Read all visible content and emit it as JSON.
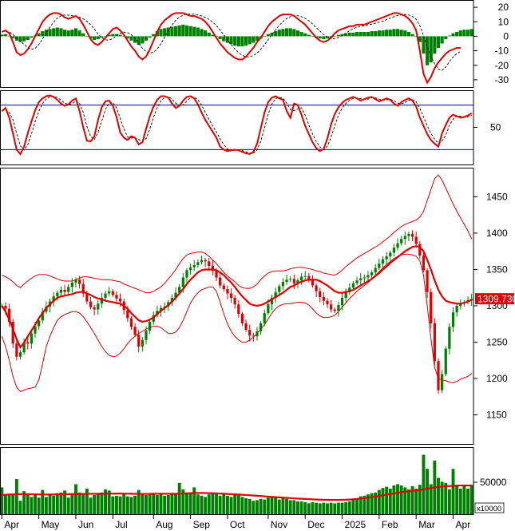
{
  "chart_data": {
    "type": "line",
    "x_labels": [
      "Apr",
      "May",
      "Jun",
      "Jul",
      "Aug",
      "Sep",
      "Oct",
      "Nov",
      "Dec",
      "2025",
      "Feb",
      "Mar",
      "Apr"
    ],
    "price_panel": {
      "ylim": [
        1110,
        1490
      ],
      "yticks": [
        1150,
        1200,
        1250,
        1300,
        1350,
        1400,
        1450
      ],
      "last_value_label": "1309.730",
      "last_value": 1309.73,
      "series": [
        {
          "role": "close",
          "color": "#008000",
          "values": [
            1300,
            1296,
            1278,
            1248,
            1230,
            1236,
            1250,
            1248,
            1262,
            1272,
            1280,
            1292,
            1299,
            1306,
            1313,
            1318,
            1322,
            1319,
            1326,
            1332,
            1336,
            1330,
            1317,
            1306,
            1298,
            1295,
            1303,
            1311,
            1317,
            1320,
            1315,
            1310,
            1306,
            1294,
            1283,
            1271,
            1260,
            1244,
            1253,
            1266,
            1278,
            1287,
            1293,
            1297,
            1299,
            1305,
            1311,
            1318,
            1326,
            1339,
            1349,
            1353,
            1356,
            1360,
            1363,
            1361,
            1355,
            1348,
            1339,
            1328,
            1323,
            1317,
            1311,
            1302,
            1289,
            1276,
            1267,
            1259,
            1258,
            1265,
            1276,
            1290,
            1302,
            1311,
            1319,
            1327,
            1333,
            1336,
            1337,
            1331,
            1335,
            1340,
            1341,
            1336,
            1328,
            1320,
            1312,
            1307,
            1302,
            1295,
            1293,
            1301,
            1311,
            1320,
            1325,
            1331,
            1335,
            1338,
            1339,
            1342,
            1346,
            1352,
            1358,
            1364,
            1368,
            1373,
            1380,
            1386,
            1392,
            1396,
            1399,
            1395,
            1385,
            1369,
            1349,
            1319,
            1276,
            1224,
            1184,
            1206,
            1241,
            1271,
            1291,
            1300,
            1303,
            1305,
            1308,
            1309.73
          ]
        },
        {
          "role": "ma",
          "color": "#e00000",
          "values": [
            1300,
            1292,
            1281,
            1268,
            1254,
            1243,
            1249,
            1258,
            1266,
            1274,
            1283,
            1290,
            1297,
            1302,
            1307,
            1311,
            1313,
            1314,
            1315,
            1316,
            1318,
            1319,
            1319,
            1317,
            1315,
            1312,
            1310,
            1309,
            1307,
            1306,
            1305,
            1304,
            1303,
            1300,
            1296,
            1290,
            1285,
            1280,
            1278,
            1279,
            1281,
            1284,
            1289,
            1293,
            1297,
            1301,
            1306,
            1311,
            1317,
            1323,
            1330,
            1336,
            1341,
            1346,
            1349,
            1350,
            1350,
            1350,
            1349,
            1346,
            1342,
            1337,
            1332,
            1326,
            1319,
            1313,
            1308,
            1303,
            1301,
            1300,
            1301,
            1303,
            1306,
            1309,
            1312,
            1315,
            1318,
            1322,
            1326,
            1328,
            1331,
            1333,
            1335,
            1336,
            1336,
            1336,
            1334,
            1331,
            1328,
            1324,
            1320,
            1318,
            1318,
            1319,
            1320,
            1322,
            1325,
            1328,
            1331,
            1334,
            1337,
            1341,
            1345,
            1350,
            1354,
            1359,
            1363,
            1367,
            1371,
            1375,
            1378,
            1381,
            1382,
            1381,
            1375,
            1363,
            1350,
            1335,
            1322,
            1313,
            1307,
            1305,
            1304,
            1303,
            1303,
            1304,
            1306,
            1308
          ]
        },
        {
          "role": "bollinger_upper",
          "color": "#e00000",
          "values": [
            1342,
            1340,
            1337,
            1333,
            1328,
            1325,
            1330,
            1334,
            1338,
            1341,
            1343,
            1343,
            1343,
            1341,
            1339,
            1337,
            1335,
            1334,
            1334,
            1334,
            1336,
            1338,
            1340,
            1340,
            1339,
            1338,
            1337,
            1336,
            1336,
            1336,
            1335,
            1334,
            1333,
            1330,
            1328,
            1326,
            1324,
            1322,
            1320,
            1318,
            1318,
            1320,
            1323,
            1326,
            1331,
            1337,
            1343,
            1350,
            1358,
            1365,
            1370,
            1372,
            1373,
            1374,
            1374,
            1372,
            1368,
            1363,
            1358,
            1352,
            1346,
            1341,
            1337,
            1333,
            1328,
            1325,
            1324,
            1324,
            1326,
            1330,
            1336,
            1341,
            1345,
            1347,
            1348,
            1348,
            1348,
            1349,
            1351,
            1352,
            1353,
            1353,
            1352,
            1351,
            1350,
            1348,
            1347,
            1345,
            1344,
            1343,
            1342,
            1345,
            1349,
            1354,
            1358,
            1362,
            1366,
            1369,
            1372,
            1375,
            1378,
            1381,
            1384,
            1388,
            1392,
            1396,
            1401,
            1405,
            1409,
            1412,
            1414,
            1416,
            1418,
            1422,
            1430,
            1445,
            1460,
            1475,
            1480,
            1473,
            1462,
            1451,
            1440,
            1430,
            1421,
            1412,
            1403,
            1392
          ]
        },
        {
          "role": "bollinger_lower",
          "color": "#e00000",
          "values": [
            1258,
            1244,
            1225,
            1203,
            1188,
            1182,
            1184,
            1186,
            1187,
            1188,
            1198,
            1220,
            1244,
            1258,
            1270,
            1280,
            1285,
            1288,
            1290,
            1292,
            1292,
            1290,
            1285,
            1278,
            1270,
            1262,
            1253,
            1244,
            1237,
            1232,
            1230,
            1231,
            1235,
            1241,
            1248,
            1254,
            1258,
            1262,
            1265,
            1268,
            1270,
            1272,
            1272,
            1270,
            1266,
            1262,
            1262,
            1264,
            1270,
            1280,
            1292,
            1304,
            1312,
            1318,
            1322,
            1324,
            1326,
            1326,
            1320,
            1305,
            1289,
            1275,
            1265,
            1258,
            1253,
            1250,
            1250,
            1253,
            1257,
            1262,
            1268,
            1274,
            1282,
            1290,
            1296,
            1300,
            1302,
            1303,
            1303,
            1304,
            1305,
            1305,
            1304,
            1301,
            1296,
            1290,
            1286,
            1284,
            1284,
            1285,
            1287,
            1292,
            1298,
            1304,
            1310,
            1315,
            1320,
            1324,
            1328,
            1332,
            1337,
            1342,
            1347,
            1352,
            1357,
            1361,
            1365,
            1368,
            1370,
            1371,
            1371,
            1370,
            1368,
            1362,
            1342,
            1300,
            1255,
            1215,
            1200,
            1198,
            1197,
            1195,
            1194,
            1196,
            1199,
            1201,
            1203,
            1207
          ]
        }
      ]
    },
    "volume_panel": {
      "ylim": [
        0,
        105000
      ],
      "yticks": [
        50000
      ],
      "unit_label": "x10000",
      "bar_color": "#008000",
      "volume": [
        42000,
        31000,
        31000,
        31000,
        55000,
        21000,
        36000,
        31000,
        27000,
        32000,
        26000,
        38000,
        27000,
        32000,
        29000,
        33000,
        34000,
        37000,
        26000,
        33000,
        47000,
        34000,
        31000,
        40000,
        26000,
        30000,
        33000,
        34000,
        39000,
        37000,
        28000,
        29000,
        28000,
        32000,
        28000,
        27000,
        29000,
        38000,
        32000,
        30000,
        33000,
        32000,
        30000,
        33000,
        29000,
        30000,
        33000,
        32000,
        49000,
        39000,
        33000,
        34000,
        42000,
        31000,
        29000,
        27000,
        31000,
        34000,
        34000,
        29000,
        33000,
        29000,
        27000,
        32000,
        30000,
        27000,
        25000,
        24000,
        21000,
        22000,
        24000,
        23000,
        26000,
        28000,
        26000,
        23000,
        26000,
        24000,
        22000,
        22000,
        20000,
        20000,
        19000,
        17000,
        19000,
        18000,
        17000,
        18000,
        17000,
        18000,
        17000,
        18000,
        18000,
        19000,
        20000,
        23000,
        25000,
        28000,
        29000,
        31000,
        33000,
        34000,
        38000,
        41000,
        43000,
        40000,
        45000,
        47000,
        45000,
        42000,
        39000,
        44000,
        40000,
        46000,
        93000,
        71000,
        47000,
        84000,
        57000,
        51000,
        49000,
        39000,
        71000,
        46000,
        40000,
        46000,
        40000,
        46000
      ],
      "ma": [
        30000,
        30500,
        31000,
        31000,
        31200,
        31400,
        31600,
        31500,
        31300,
        31200,
        31000,
        30900,
        30800,
        30800,
        30900,
        31000,
        31100,
        31200,
        31300,
        31400,
        31500,
        31600,
        31700,
        31800,
        31900,
        32000,
        32000,
        32000,
        32000,
        32100,
        32200,
        32300,
        32300,
        32200,
        32100,
        32000,
        31900,
        31800,
        31800,
        31800,
        31900,
        32000,
        32100,
        32100,
        32000,
        32000,
        32000,
        32000,
        32200,
        32500,
        32800,
        33000,
        33200,
        33300,
        33300,
        33200,
        33000,
        32800,
        32600,
        32300,
        32000,
        31700,
        31400,
        31100,
        30800,
        30500,
        30100,
        29700,
        29300,
        28900,
        28500,
        28000,
        27600,
        27200,
        26800,
        26400,
        26000,
        25600,
        25200,
        24800,
        24500,
        24200,
        23900,
        23600,
        23300,
        23000,
        22800,
        22600,
        22500,
        22400,
        22400,
        22400,
        22500,
        22700,
        23000,
        23400,
        23900,
        24500,
        25200,
        26000,
        26800,
        27600,
        28600,
        29600,
        30600,
        31500,
        32500,
        33500,
        34400,
        35200,
        35900,
        36500,
        37000,
        37700,
        39000,
        40000,
        41000,
        42000,
        42700,
        43300,
        43800,
        44100,
        44500,
        44700,
        44900,
        45000,
        45000,
        45200
      ]
    },
    "macd_panel": {
      "ylim": [
        -35,
        25
      ],
      "yticks": [
        20,
        10,
        0,
        -10,
        -20,
        -30
      ],
      "bar_color": "#008000",
      "histogram": [
        1.2,
        1.5,
        0.3,
        -1.5,
        -3.0,
        -4.0,
        -3.5,
        -2.5,
        -1.0,
        0.5,
        2.0,
        3.5,
        4.5,
        5.0,
        5.5,
        6.0,
        5.5,
        4.5,
        4.0,
        4.5,
        5.5,
        4.0,
        2.0,
        0.0,
        -1.5,
        -2.5,
        -2.0,
        -1.0,
        0.0,
        1.0,
        1.5,
        1.5,
        1.0,
        0.0,
        -1.5,
        -3.0,
        -4.5,
        -6.0,
        -5.0,
        -3.0,
        -1.0,
        1.5,
        3.5,
        5.0,
        5.5,
        6.0,
        6.5,
        7.0,
        7.5,
        8.0,
        7.5,
        7.0,
        6.5,
        6.0,
        5.0,
        4.0,
        2.5,
        1.0,
        -0.5,
        -2.0,
        -3.5,
        -4.5,
        -5.5,
        -6.5,
        -7.0,
        -7.0,
        -6.5,
        -5.5,
        -4.5,
        -3.0,
        -1.5,
        0.0,
        1.5,
        2.5,
        3.5,
        4.5,
        5.0,
        5.5,
        5.5,
        5.0,
        4.0,
        3.0,
        2.0,
        1.0,
        0.0,
        -1.0,
        -1.5,
        -2.0,
        -1.5,
        -1.0,
        0.0,
        1.0,
        1.5,
        2.0,
        2.5,
        2.5,
        3.0,
        3.0,
        3.0,
        3.0,
        3.5,
        3.5,
        4.0,
        4.0,
        4.5,
        4.5,
        5.0,
        5.0,
        4.5,
        4.0,
        3.0,
        1.5,
        0.0,
        -4.0,
        -12.0,
        -20.0,
        -18.0,
        -12.0,
        -8.0,
        -5.0,
        -2.0,
        0.5,
        2.0,
        3.0,
        4.0,
        4.5,
        4.5,
        5.0
      ],
      "macd": [
        3,
        4,
        2,
        -4,
        -11,
        -13,
        -12,
        -9,
        -5,
        0,
        5,
        10,
        13,
        15,
        16,
        16,
        15,
        13,
        12,
        13,
        14,
        12,
        8,
        3,
        -2,
        -5,
        -6,
        -4,
        -1,
        2,
        5,
        6,
        4,
        1,
        -3,
        -7,
        -10,
        -14,
        -16,
        -14,
        -9,
        -3,
        3,
        8,
        11,
        13,
        15,
        16,
        16,
        16,
        15,
        14,
        14,
        13,
        12,
        10,
        7,
        3,
        -1,
        -5,
        -8,
        -11,
        -13,
        -15,
        -16,
        -16,
        -14,
        -11,
        -8,
        -4,
        -1,
        3,
        7,
        10,
        12,
        14,
        15,
        15,
        15,
        14,
        12,
        10,
        8,
        5,
        2,
        -1,
        -3,
        -4,
        -3,
        -1,
        2,
        4,
        5,
        6,
        7,
        7,
        8,
        8,
        8,
        9,
        10,
        11,
        12,
        13,
        14,
        15,
        16,
        16,
        15,
        14,
        12,
        9,
        4,
        -10,
        -26,
        -32,
        -28,
        -22,
        -18,
        -15,
        -12,
        -10,
        -9,
        -8,
        -8
      ]
    },
    "stoch_panel": {
      "ylim": [
        0,
        100
      ],
      "yticks": [
        50
      ],
      "upper_line": 80,
      "lower_line": 20,
      "line_color_upper": "#0000c0",
      "line_color_lower": "#0000c0",
      "k": [
        72,
        76,
        63,
        42,
        20,
        14,
        24,
        42,
        58,
        73,
        84,
        89,
        92,
        93,
        91,
        87,
        82,
        79,
        81,
        86,
        89,
        72,
        50,
        32,
        31,
        38,
        60,
        77,
        85,
        86,
        79,
        64,
        43,
        36,
        33,
        38,
        36,
        27,
        30,
        48,
        65,
        78,
        87,
        92,
        92,
        90,
        82,
        76,
        79,
        86,
        91,
        92,
        89,
        81,
        70,
        60,
        52,
        44,
        36,
        24,
        20,
        18,
        19,
        20,
        19,
        17,
        15,
        14,
        17,
        28,
        49,
        70,
        84,
        90,
        92,
        89,
        87,
        72,
        63,
        82,
        80,
        67,
        52,
        41,
        30,
        22,
        18,
        21,
        35,
        54,
        68,
        77,
        83,
        87,
        89,
        91,
        89,
        86,
        88,
        90,
        91,
        88,
        85,
        87,
        89,
        87,
        82,
        79,
        84,
        87,
        89,
        86,
        78,
        63,
        52,
        41,
        33,
        28,
        24,
        42,
        53,
        63,
        67,
        65,
        63,
        64,
        66,
        69
      ]
    }
  }
}
